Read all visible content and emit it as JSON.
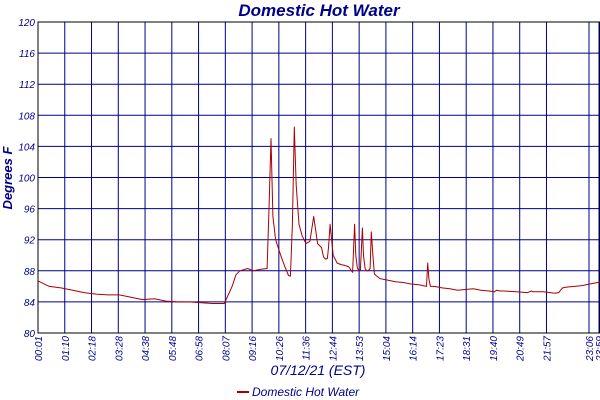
{
  "chart_data": {
    "type": "line",
    "title": "Domestic Hot Water",
    "xlabel": "07/12/21 (EST)",
    "ylabel": "Degrees F",
    "ylim": [
      80,
      120
    ],
    "yticks": [
      80,
      84,
      88,
      92,
      96,
      100,
      104,
      108,
      112,
      116,
      120
    ],
    "xlim": [
      1,
      1446
    ],
    "x_tick_labels": [
      "00:01",
      "01:10",
      "02:18",
      "03:28",
      "04:38",
      "05:48",
      "06:58",
      "08:07",
      "09:16",
      "10:26",
      "11:36",
      "12:44",
      "13:53",
      "15:04",
      "16:14",
      "17:23",
      "18:31",
      "19:40",
      "20:49",
      "21:57",
      "23:06",
      "23:59"
    ],
    "grid": true,
    "legend_position": "bottom",
    "colors": {
      "series": "#aa0000",
      "grid": "#00008b",
      "text": "#00008b",
      "axis": "#000000"
    },
    "series": [
      {
        "name": "Domestic Hot Water",
        "x": [
          1,
          30,
          60,
          90,
          120,
          150,
          180,
          210,
          240,
          270,
          300,
          330,
          360,
          390,
          420,
          450,
          480,
          500,
          510,
          520,
          540,
          555,
          575,
          590,
          595,
          600,
          605,
          612,
          625,
          635,
          645,
          650,
          655,
          660,
          665,
          672,
          680,
          690,
          700,
          710,
          720,
          730,
          735,
          740,
          745,
          748,
          752,
          756,
          760,
          770,
          780,
          790,
          800,
          810,
          815,
          818,
          822,
          826,
          830,
          835,
          838,
          842,
          846,
          850,
          855,
          858,
          862,
          866,
          870,
          880,
          890,
          900,
          920,
          940,
          960,
          980,
          1000,
          1003,
          1006,
          1010,
          1020,
          1040,
          1060,
          1080,
          1100,
          1120,
          1140,
          1160,
          1175,
          1180,
          1190,
          1200,
          1230,
          1260,
          1270,
          1274,
          1280,
          1290,
          1300,
          1330,
          1340,
          1346,
          1350,
          1360,
          1380,
          1400,
          1420,
          1440,
          1446
        ],
        "values": [
          86.7,
          86.0,
          85.8,
          85.5,
          85.2,
          85.0,
          84.9,
          84.9,
          84.6,
          84.3,
          84.4,
          84.1,
          84.0,
          84.0,
          83.9,
          83.8,
          83.8,
          86.0,
          87.5,
          88.0,
          88.3,
          88.0,
          88.2,
          88.3,
          96.0,
          105.0,
          95.0,
          92.0,
          90.0,
          88.6,
          87.4,
          87.3,
          94.0,
          106.5,
          99.0,
          94.0,
          92.5,
          91.5,
          91.8,
          95.0,
          91.5,
          91.0,
          89.8,
          89.5,
          89.6,
          91.0,
          94.0,
          92.0,
          90.0,
          89.0,
          88.8,
          88.7,
          88.5,
          87.8,
          94.0,
          90.0,
          88.4,
          88.0,
          88.1,
          93.5,
          90.0,
          88.3,
          88.0,
          88.0,
          88.3,
          93.0,
          90.0,
          87.6,
          87.4,
          87.0,
          86.9,
          86.8,
          86.6,
          86.5,
          86.3,
          86.2,
          86.0,
          89.0,
          87.0,
          86.0,
          86.0,
          85.8,
          85.7,
          85.5,
          85.6,
          85.7,
          85.5,
          85.4,
          85.3,
          85.5,
          85.4,
          85.4,
          85.3,
          85.2,
          85.4,
          85.3,
          85.3,
          85.3,
          85.3,
          85.1,
          85.2,
          85.6,
          85.8,
          85.9,
          86.0,
          86.1,
          86.3,
          86.5,
          86.6
        ]
      }
    ]
  }
}
